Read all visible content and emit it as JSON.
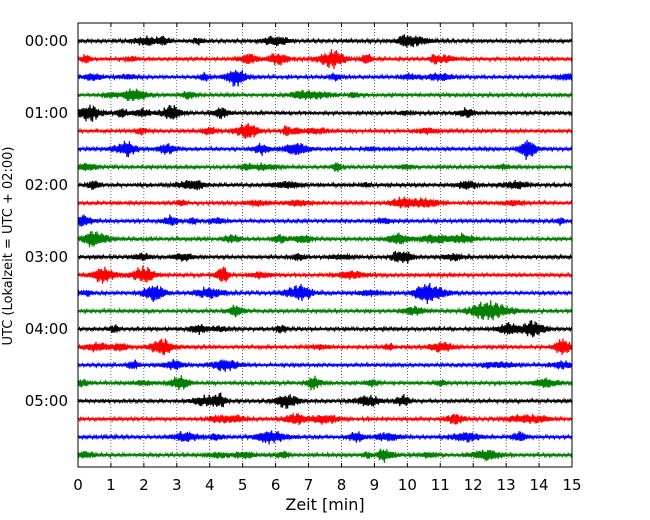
{
  "chart_data": {
    "type": "line",
    "title": "",
    "xlabel": "Zeit  [min]",
    "ylabel": "UTC (Lokalzeit = UTC + 02:00)",
    "xlim": [
      0,
      15
    ],
    "x_ticks": [
      "0",
      "1",
      "2",
      "3",
      "4",
      "5",
      "6",
      "7",
      "8",
      "9",
      "10",
      "11",
      "12",
      "13",
      "14",
      "15"
    ],
    "y_ticks": [
      "00:00",
      "01:00",
      "02:00",
      "03:00",
      "04:00",
      "05:00"
    ],
    "grid": "vertical dotted",
    "legend": "none",
    "trace_interval_minutes": 15,
    "trace_count": 24,
    "trace_colors": [
      "#000000",
      "#ff0000",
      "#0000ff",
      "#007f00"
    ],
    "traces": [
      {
        "start": "00:00",
        "color": "#000000"
      },
      {
        "start": "00:15",
        "color": "#ff0000"
      },
      {
        "start": "00:30",
        "color": "#0000ff"
      },
      {
        "start": "00:45",
        "color": "#007f00"
      },
      {
        "start": "01:00",
        "color": "#000000"
      },
      {
        "start": "01:15",
        "color": "#ff0000"
      },
      {
        "start": "01:30",
        "color": "#0000ff"
      },
      {
        "start": "01:45",
        "color": "#007f00"
      },
      {
        "start": "02:00",
        "color": "#000000"
      },
      {
        "start": "02:15",
        "color": "#ff0000"
      },
      {
        "start": "02:30",
        "color": "#0000ff"
      },
      {
        "start": "02:45",
        "color": "#007f00"
      },
      {
        "start": "03:00",
        "color": "#000000"
      },
      {
        "start": "03:15",
        "color": "#ff0000"
      },
      {
        "start": "03:30",
        "color": "#0000ff"
      },
      {
        "start": "03:45",
        "color": "#007f00"
      },
      {
        "start": "04:00",
        "color": "#000000"
      },
      {
        "start": "04:15",
        "color": "#ff0000"
      },
      {
        "start": "04:30",
        "color": "#0000ff"
      },
      {
        "start": "04:45",
        "color": "#007f00"
      },
      {
        "start": "05:00",
        "color": "#000000"
      },
      {
        "start": "05:15",
        "color": "#ff0000"
      },
      {
        "start": "05:30",
        "color": "#0000ff"
      },
      {
        "start": "05:45",
        "color": "#007f00"
      }
    ]
  }
}
